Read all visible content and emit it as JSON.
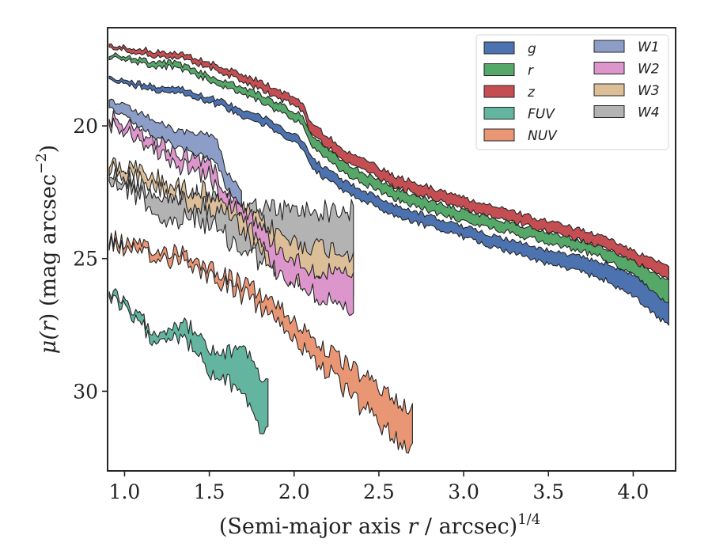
{
  "chart_data": {
    "type": "area",
    "xlabel": "(Semi-major axis r / arcsec)",
    "xlabel_prefix": "(Semi-major axis ",
    "xlabel_var": "r",
    "xlabel_suffix": " / arcsec)",
    "xlabel_exponent": "1/4",
    "ylabel": "μ(r) (mag arcsec⁻²)",
    "ylabel_mu": "μ(",
    "ylabel_var": "r",
    "ylabel_mid": ") (mag arcsec",
    "ylabel_exponent": "−2",
    "ylabel_end": ")",
    "xlim": [
      0.9,
      4.25
    ],
    "ylim": [
      33.0,
      16.3
    ],
    "y_inverted": true,
    "xticks": [
      1.0,
      1.5,
      2.0,
      2.5,
      3.0,
      3.5,
      4.0
    ],
    "xtick_labels": [
      "1.0",
      "1.5",
      "2.0",
      "2.5",
      "3.0",
      "3.5",
      "4.0"
    ],
    "yticks": [
      20,
      25,
      30
    ],
    "ytick_labels": [
      "20",
      "25",
      "30"
    ],
    "grid": false,
    "legend_position": "top-right",
    "legend_columns": 2,
    "series": [
      {
        "name": "g",
        "color": "#4c72b0",
        "x_min": 0.91,
        "x_max": 4.22,
        "noise": 0.1,
        "upper": [
          [
            0.91,
            18.2
          ],
          [
            1.2,
            18.5
          ],
          [
            1.3,
            18.5
          ],
          [
            1.5,
            18.9
          ],
          [
            1.8,
            19.6
          ],
          [
            2.05,
            20.5
          ],
          [
            2.1,
            21.2
          ],
          [
            2.3,
            22.1
          ],
          [
            2.6,
            23.0
          ],
          [
            3.0,
            23.8
          ],
          [
            3.5,
            24.7
          ],
          [
            3.8,
            25.1
          ],
          [
            4.0,
            25.6
          ],
          [
            4.22,
            26.6
          ]
        ],
        "lower": [
          [
            0.91,
            18.3
          ],
          [
            1.2,
            18.7
          ],
          [
            1.3,
            18.7
          ],
          [
            1.5,
            19.1
          ],
          [
            1.8,
            19.9
          ],
          [
            2.05,
            20.8
          ],
          [
            2.1,
            21.6
          ],
          [
            2.3,
            22.5
          ],
          [
            2.6,
            23.4
          ],
          [
            3.0,
            24.2
          ],
          [
            3.5,
            25.2
          ],
          [
            3.8,
            25.7
          ],
          [
            4.0,
            26.4
          ],
          [
            4.22,
            27.6
          ]
        ]
      },
      {
        "name": "r",
        "color": "#55a868",
        "x_min": 0.91,
        "x_max": 4.22,
        "noise": 0.1,
        "upper": [
          [
            0.91,
            17.3
          ],
          [
            1.2,
            17.6
          ],
          [
            1.3,
            17.6
          ],
          [
            1.5,
            18.1
          ],
          [
            1.8,
            18.8
          ],
          [
            2.05,
            19.6
          ],
          [
            2.1,
            20.4
          ],
          [
            2.3,
            21.4
          ],
          [
            2.6,
            22.4
          ],
          [
            3.0,
            23.2
          ],
          [
            3.5,
            24.0
          ],
          [
            3.8,
            24.5
          ],
          [
            4.0,
            25.1
          ],
          [
            4.22,
            25.9
          ]
        ],
        "lower": [
          [
            0.91,
            17.4
          ],
          [
            1.2,
            17.8
          ],
          [
            1.3,
            17.8
          ],
          [
            1.5,
            18.3
          ],
          [
            1.8,
            19.1
          ],
          [
            2.05,
            19.9
          ],
          [
            2.1,
            20.8
          ],
          [
            2.3,
            21.8
          ],
          [
            2.6,
            22.8
          ],
          [
            3.0,
            23.6
          ],
          [
            3.5,
            24.4
          ],
          [
            3.8,
            24.9
          ],
          [
            4.0,
            25.6
          ],
          [
            4.22,
            26.8
          ]
        ]
      },
      {
        "name": "z",
        "color": "#c44e52",
        "x_min": 0.91,
        "x_max": 4.22,
        "noise": 0.1,
        "upper": [
          [
            0.91,
            16.9
          ],
          [
            1.2,
            17.2
          ],
          [
            1.3,
            17.2
          ],
          [
            1.5,
            17.6
          ],
          [
            1.8,
            18.3
          ],
          [
            2.05,
            19.1
          ],
          [
            2.1,
            19.9
          ],
          [
            2.3,
            20.9
          ],
          [
            2.6,
            21.9
          ],
          [
            3.0,
            22.7
          ],
          [
            3.5,
            23.6
          ],
          [
            3.8,
            24.1
          ],
          [
            4.0,
            24.7
          ],
          [
            4.22,
            25.3
          ]
        ],
        "lower": [
          [
            0.91,
            17.0
          ],
          [
            1.2,
            17.4
          ],
          [
            1.3,
            17.4
          ],
          [
            1.5,
            17.8
          ],
          [
            1.8,
            18.6
          ],
          [
            2.05,
            19.4
          ],
          [
            2.1,
            20.3
          ],
          [
            2.3,
            21.3
          ],
          [
            2.6,
            22.3
          ],
          [
            3.0,
            23.1
          ],
          [
            3.5,
            24.0
          ],
          [
            3.8,
            24.5
          ],
          [
            4.0,
            25.1
          ],
          [
            4.22,
            25.8
          ]
        ]
      },
      {
        "name": "FUV",
        "color": "#64b5a0",
        "x_min": 0.91,
        "x_max": 1.85,
        "noise": 0.3,
        "upper": [
          [
            0.91,
            26.2
          ],
          [
            1.1,
            27.3
          ],
          [
            1.2,
            27.8
          ],
          [
            1.3,
            27.4
          ],
          [
            1.4,
            27.6
          ],
          [
            1.5,
            28.5
          ],
          [
            1.6,
            28.6
          ],
          [
            1.7,
            28.2
          ],
          [
            1.8,
            29.4
          ],
          [
            1.85,
            29.8
          ]
        ],
        "lower": [
          [
            0.91,
            26.4
          ],
          [
            1.1,
            27.6
          ],
          [
            1.2,
            28.1
          ],
          [
            1.3,
            27.8
          ],
          [
            1.4,
            28.3
          ],
          [
            1.5,
            29.4
          ],
          [
            1.6,
            29.6
          ],
          [
            1.7,
            30.0
          ],
          [
            1.8,
            31.4
          ],
          [
            1.85,
            31.6
          ]
        ]
      },
      {
        "name": "NUV",
        "color": "#e99675",
        "x_min": 0.91,
        "x_max": 2.7,
        "noise": 0.35,
        "upper": [
          [
            0.91,
            24.2
          ],
          [
            1.2,
            24.8
          ],
          [
            1.3,
            24.6
          ],
          [
            1.5,
            25.3
          ],
          [
            1.8,
            26.3
          ],
          [
            2.0,
            27.3
          ],
          [
            2.2,
            28.5
          ],
          [
            2.4,
            29.4
          ],
          [
            2.6,
            30.3
          ],
          [
            2.7,
            30.6
          ]
        ],
        "lower": [
          [
            0.91,
            24.4
          ],
          [
            1.2,
            25.1
          ],
          [
            1.3,
            24.9
          ],
          [
            1.5,
            25.6
          ],
          [
            1.8,
            26.8
          ],
          [
            2.0,
            28.0
          ],
          [
            2.2,
            29.3
          ],
          [
            2.4,
            30.6
          ],
          [
            2.6,
            31.8
          ],
          [
            2.7,
            32.0
          ]
        ]
      },
      {
        "name": "W1",
        "color": "#8c9dc8",
        "x_min": 0.91,
        "x_max": 1.7,
        "noise": 0.12,
        "upper": [
          [
            0.91,
            19.0
          ],
          [
            1.15,
            19.7
          ],
          [
            1.3,
            20.2
          ],
          [
            1.5,
            20.3
          ],
          [
            1.55,
            20.6
          ],
          [
            1.6,
            21.7
          ],
          [
            1.7,
            22.5
          ]
        ],
        "lower": [
          [
            0.91,
            19.3
          ],
          [
            1.15,
            20.3
          ],
          [
            1.3,
            20.8
          ],
          [
            1.5,
            21.2
          ],
          [
            1.55,
            21.5
          ],
          [
            1.6,
            22.3
          ],
          [
            1.7,
            23.1
          ]
        ]
      },
      {
        "name": "W2",
        "color": "#dc96cb",
        "x_min": 0.91,
        "x_max": 2.35,
        "noise": 0.35,
        "upper": [
          [
            0.91,
            19.7
          ],
          [
            1.15,
            20.4
          ],
          [
            1.3,
            21.0
          ],
          [
            1.5,
            21.3
          ],
          [
            1.6,
            22.4
          ],
          [
            1.7,
            23.0
          ],
          [
            1.9,
            24.6
          ],
          [
            2.1,
            25.4
          ],
          [
            2.35,
            25.7
          ]
        ],
        "lower": [
          [
            0.91,
            20.0
          ],
          [
            1.15,
            20.8
          ],
          [
            1.3,
            21.4
          ],
          [
            1.5,
            21.9
          ],
          [
            1.6,
            22.8
          ],
          [
            1.7,
            23.3
          ],
          [
            1.9,
            25.5
          ],
          [
            2.1,
            26.2
          ],
          [
            2.35,
            27.2
          ]
        ]
      },
      {
        "name": "W3",
        "color": "#dcbe98",
        "x_min": 0.91,
        "x_max": 2.35,
        "noise": 0.4,
        "upper": [
          [
            0.91,
            21.4
          ],
          [
            1.1,
            21.7
          ],
          [
            1.3,
            22.3
          ],
          [
            1.45,
            22.4
          ],
          [
            1.6,
            22.8
          ],
          [
            1.8,
            23.6
          ],
          [
            2.0,
            24.4
          ],
          [
            2.2,
            24.6
          ],
          [
            2.35,
            24.8
          ]
        ],
        "lower": [
          [
            0.91,
            21.6
          ],
          [
            1.1,
            22.1
          ],
          [
            1.3,
            22.6
          ],
          [
            1.45,
            23.0
          ],
          [
            1.6,
            23.3
          ],
          [
            1.8,
            24.9
          ],
          [
            2.0,
            25.8
          ],
          [
            2.2,
            26.0
          ],
          [
            2.35,
            26.4
          ]
        ]
      },
      {
        "name": "W4",
        "color": "#b3b3b3",
        "x_min": 0.91,
        "x_max": 2.35,
        "noise": 0.45,
        "upper": [
          [
            0.91,
            21.8
          ],
          [
            1.1,
            22.2
          ],
          [
            1.25,
            22.8
          ],
          [
            1.4,
            22.6
          ],
          [
            1.5,
            22.8
          ],
          [
            1.65,
            23.0
          ],
          [
            1.8,
            23.1
          ],
          [
            2.0,
            23.2
          ],
          [
            2.2,
            23.2
          ],
          [
            2.35,
            23.2
          ]
        ],
        "lower": [
          [
            0.91,
            22.0
          ],
          [
            1.1,
            22.6
          ],
          [
            1.25,
            23.8
          ],
          [
            1.4,
            23.4
          ],
          [
            1.5,
            23.7
          ],
          [
            1.65,
            24.5
          ],
          [
            1.8,
            25.0
          ],
          [
            2.0,
            25.1
          ],
          [
            2.2,
            25.3
          ],
          [
            2.35,
            25.5
          ]
        ]
      }
    ],
    "draw_order": [
      "W4",
      "W3",
      "W2",
      "W1",
      "FUV",
      "NUV",
      "g",
      "r",
      "z"
    ]
  }
}
